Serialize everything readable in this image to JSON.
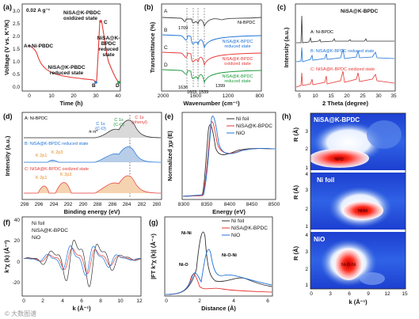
{
  "panels": {
    "a": {
      "label": "(a)",
      "rate": "0.02 A g⁻¹",
      "ylabel": "Voltage (V vs. K⁺/K)",
      "xlabel": "Time (h)",
      "yticks": [
        "0.0",
        "0.5",
        "1.0",
        "1.5",
        "2.0",
        "2.5",
        "3.0"
      ],
      "xticks": [
        "0",
        "10",
        "20",
        "30",
        "40"
      ],
      "pointA": "A",
      "pointA_label": "Ni-PBDC",
      "oxidized": "NiSA@K-PBDC\noxidized state",
      "pointC": "C",
      "reduced": "NiSA@K-PBDC\nreduced state",
      "pointB": "B",
      "reduced2": "NiSA@K-\nBPDC\nreduced\nstate",
      "pointD": "D"
    },
    "b": {
      "label": "(b)",
      "ylabel": "Transmittance (%)",
      "xlabel": "Wavenumber (cm⁻¹)",
      "xticks": [
        "2000",
        "1600",
        "1200",
        "800"
      ],
      "A": "A",
      "B": "B",
      "C": "C",
      "D": "D",
      "ann": [
        "1709",
        "1636",
        "1603",
        "1539",
        "1399"
      ],
      "sA": "Ni-BPDC",
      "sB": "NiSA@K-BPDC\nreduced state",
      "sC": "NiSA@K-BPDC\noxidized state",
      "sD": "NiSA@K-BPDC\nreduced state"
    },
    "c": {
      "label": "(c)",
      "title": "NiSA@K-BPDC",
      "ylabel": "Intensity (a.u.)",
      "xlabel": "2 Theta (degree)",
      "xticks": [
        "5",
        "10",
        "15",
        "20",
        "25",
        "30",
        "35"
      ],
      "sA": "A: Ni-BPDC",
      "sB": "B: NiSA@K-BPDC reduced state",
      "sC": "C: NiSA@K-BPDC oxidized state"
    },
    "d": {
      "label": "(d)",
      "ylabel": "Intensity (a.u.)",
      "xlabel": "Binding energy (eV)",
      "xticks": [
        "298",
        "296",
        "294",
        "292",
        "290",
        "288",
        "286",
        "284",
        "282",
        "280"
      ],
      "sA": "A: Ni-BPDC",
      "sB": "B: NiSA@K-BPDC reduced state",
      "sC": "C: NiSA@K-BPDC  oxidized state",
      "ann": [
        "C 1s\n(C-O)",
        "C 1s\n(C-C)",
        "C 1s\n(phenyl)",
        "π-π*",
        "K 2p3",
        "K 2p1",
        "K 2p1",
        "K 2p3"
      ]
    },
    "e": {
      "label": "(e)",
      "ylabel": "Normalized χμ (E)",
      "xlabel": "Energy (eV)",
      "xticks": [
        "8300",
        "8350",
        "8400",
        "8450",
        "8500"
      ],
      "legend": [
        "Ni foil",
        "NiSA@K-BPDC",
        "NiO"
      ]
    },
    "f": {
      "label": "(f)",
      "ylabel": "k³χ (k) (Å⁻³)",
      "xlabel": "k (Å⁻¹)",
      "xticks": [
        "0",
        "2",
        "4",
        "6",
        "8",
        "10",
        "12"
      ],
      "yticks": [
        "-20",
        "0",
        "20",
        "40"
      ],
      "legend": [
        "Ni foil",
        "NiSA@K-BPDC",
        "NiO"
      ]
    },
    "g": {
      "label": "(g)",
      "ylabel": "|FT k³χ (k)| (Å⁻⁴)",
      "xlabel": "Distance (Å)",
      "xticks": [
        "0",
        "2",
        "4",
        "6"
      ],
      "legend": [
        "Ni foil",
        "NiSA@K-BPDC",
        "NiO"
      ],
      "ann": [
        "Ni-Ni",
        "Ni-O",
        "Ni-O-Ni"
      ]
    },
    "h": {
      "label": "(h)",
      "ylabel": "R (Å)",
      "xlabel": "k (Å⁻¹)",
      "xticks": [
        "0",
        "3",
        "6",
        "9",
        "12",
        "15"
      ],
      "yticks": [
        "1",
        "2",
        "3",
        "4"
      ],
      "titles": [
        "NiSA@K-BPDC",
        "Ni foil",
        "NiO"
      ],
      "centers": [
        "Ni-O",
        "Ni-Ni",
        "Ni-O-Ni"
      ]
    }
  },
  "watermark": "© 大数图谱",
  "colors": {
    "black": "#222222",
    "red": "#e53935",
    "blue": "#1e73d8",
    "green": "#1a9a3c",
    "orange": "#e58a1f"
  }
}
